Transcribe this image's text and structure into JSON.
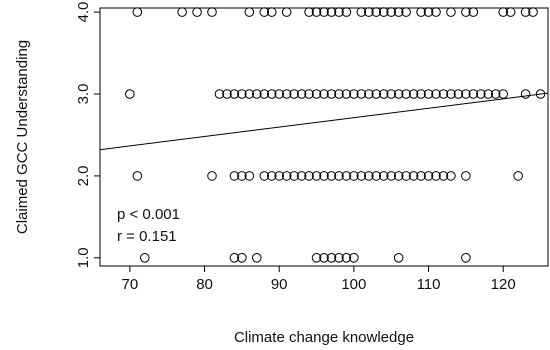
{
  "chart_data": {
    "type": "scatter",
    "title": "",
    "xlabel": "Climate change knowledge",
    "ylabel": "Claimed GCC Understanding",
    "xlim": [
      66,
      126
    ],
    "ylim": [
      0.9,
      4.05
    ],
    "x_ticks": [
      70,
      80,
      90,
      100,
      110,
      120
    ],
    "y_ticks": [
      1.0,
      2.0,
      3.0,
      4.0
    ],
    "y_tick_labels": [
      "1.0",
      "2.0",
      "3.0",
      "4.0"
    ],
    "grid": false,
    "annotations": [
      "p < 0.001",
      "r = 0.151"
    ],
    "regression_line": {
      "x": [
        66,
        126
      ],
      "y": [
        2.32,
        3.01
      ]
    },
    "series": [
      {
        "marker": "open-circle",
        "points": [
          [
            71,
            4
          ],
          [
            77,
            4
          ],
          [
            79,
            4
          ],
          [
            81,
            4
          ],
          [
            86,
            4
          ],
          [
            88,
            4
          ],
          [
            89,
            4
          ],
          [
            91,
            4
          ],
          [
            94,
            4
          ],
          [
            95,
            4
          ],
          [
            96,
            4
          ],
          [
            97,
            4
          ],
          [
            98,
            4
          ],
          [
            99,
            4
          ],
          [
            101,
            4
          ],
          [
            102,
            4
          ],
          [
            103,
            4
          ],
          [
            104,
            4
          ],
          [
            105,
            4
          ],
          [
            106,
            4
          ],
          [
            107,
            4
          ],
          [
            109,
            4
          ],
          [
            110,
            4
          ],
          [
            111,
            4
          ],
          [
            113,
            4
          ],
          [
            115,
            4
          ],
          [
            116,
            4
          ],
          [
            120,
            4
          ],
          [
            121,
            4
          ],
          [
            123,
            4
          ],
          [
            124,
            4
          ],
          [
            70,
            3
          ],
          [
            82,
            3
          ],
          [
            83,
            3
          ],
          [
            84,
            3
          ],
          [
            85,
            3
          ],
          [
            86,
            3
          ],
          [
            87,
            3
          ],
          [
            88,
            3
          ],
          [
            89,
            3
          ],
          [
            90,
            3
          ],
          [
            91,
            3
          ],
          [
            92,
            3
          ],
          [
            93,
            3
          ],
          [
            94,
            3
          ],
          [
            95,
            3
          ],
          [
            96,
            3
          ],
          [
            97,
            3
          ],
          [
            98,
            3
          ],
          [
            99,
            3
          ],
          [
            100,
            3
          ],
          [
            101,
            3
          ],
          [
            102,
            3
          ],
          [
            103,
            3
          ],
          [
            104,
            3
          ],
          [
            105,
            3
          ],
          [
            106,
            3
          ],
          [
            107,
            3
          ],
          [
            108,
            3
          ],
          [
            109,
            3
          ],
          [
            110,
            3
          ],
          [
            111,
            3
          ],
          [
            112,
            3
          ],
          [
            113,
            3
          ],
          [
            114,
            3
          ],
          [
            115,
            3
          ],
          [
            116,
            3
          ],
          [
            117,
            3
          ],
          [
            118,
            3
          ],
          [
            119,
            3
          ],
          [
            120,
            3
          ],
          [
            123,
            3
          ],
          [
            125,
            3
          ],
          [
            71,
            2
          ],
          [
            81,
            2
          ],
          [
            84,
            2
          ],
          [
            85,
            2
          ],
          [
            86,
            2
          ],
          [
            88,
            2
          ],
          [
            89,
            2
          ],
          [
            90,
            2
          ],
          [
            91,
            2
          ],
          [
            92,
            2
          ],
          [
            93,
            2
          ],
          [
            94,
            2
          ],
          [
            95,
            2
          ],
          [
            96,
            2
          ],
          [
            97,
            2
          ],
          [
            98,
            2
          ],
          [
            99,
            2
          ],
          [
            100,
            2
          ],
          [
            101,
            2
          ],
          [
            102,
            2
          ],
          [
            103,
            2
          ],
          [
            104,
            2
          ],
          [
            105,
            2
          ],
          [
            106,
            2
          ],
          [
            107,
            2
          ],
          [
            108,
            2
          ],
          [
            109,
            2
          ],
          [
            110,
            2
          ],
          [
            111,
            2
          ],
          [
            112,
            2
          ],
          [
            113,
            2
          ],
          [
            115,
            2
          ],
          [
            122,
            2
          ],
          [
            72,
            1
          ],
          [
            84,
            1
          ],
          [
            85,
            1
          ],
          [
            87,
            1
          ],
          [
            95,
            1
          ],
          [
            96,
            1
          ],
          [
            97,
            1
          ],
          [
            98,
            1
          ],
          [
            99,
            1
          ],
          [
            100,
            1
          ],
          [
            106,
            1
          ],
          [
            115,
            1
          ]
        ]
      }
    ]
  }
}
